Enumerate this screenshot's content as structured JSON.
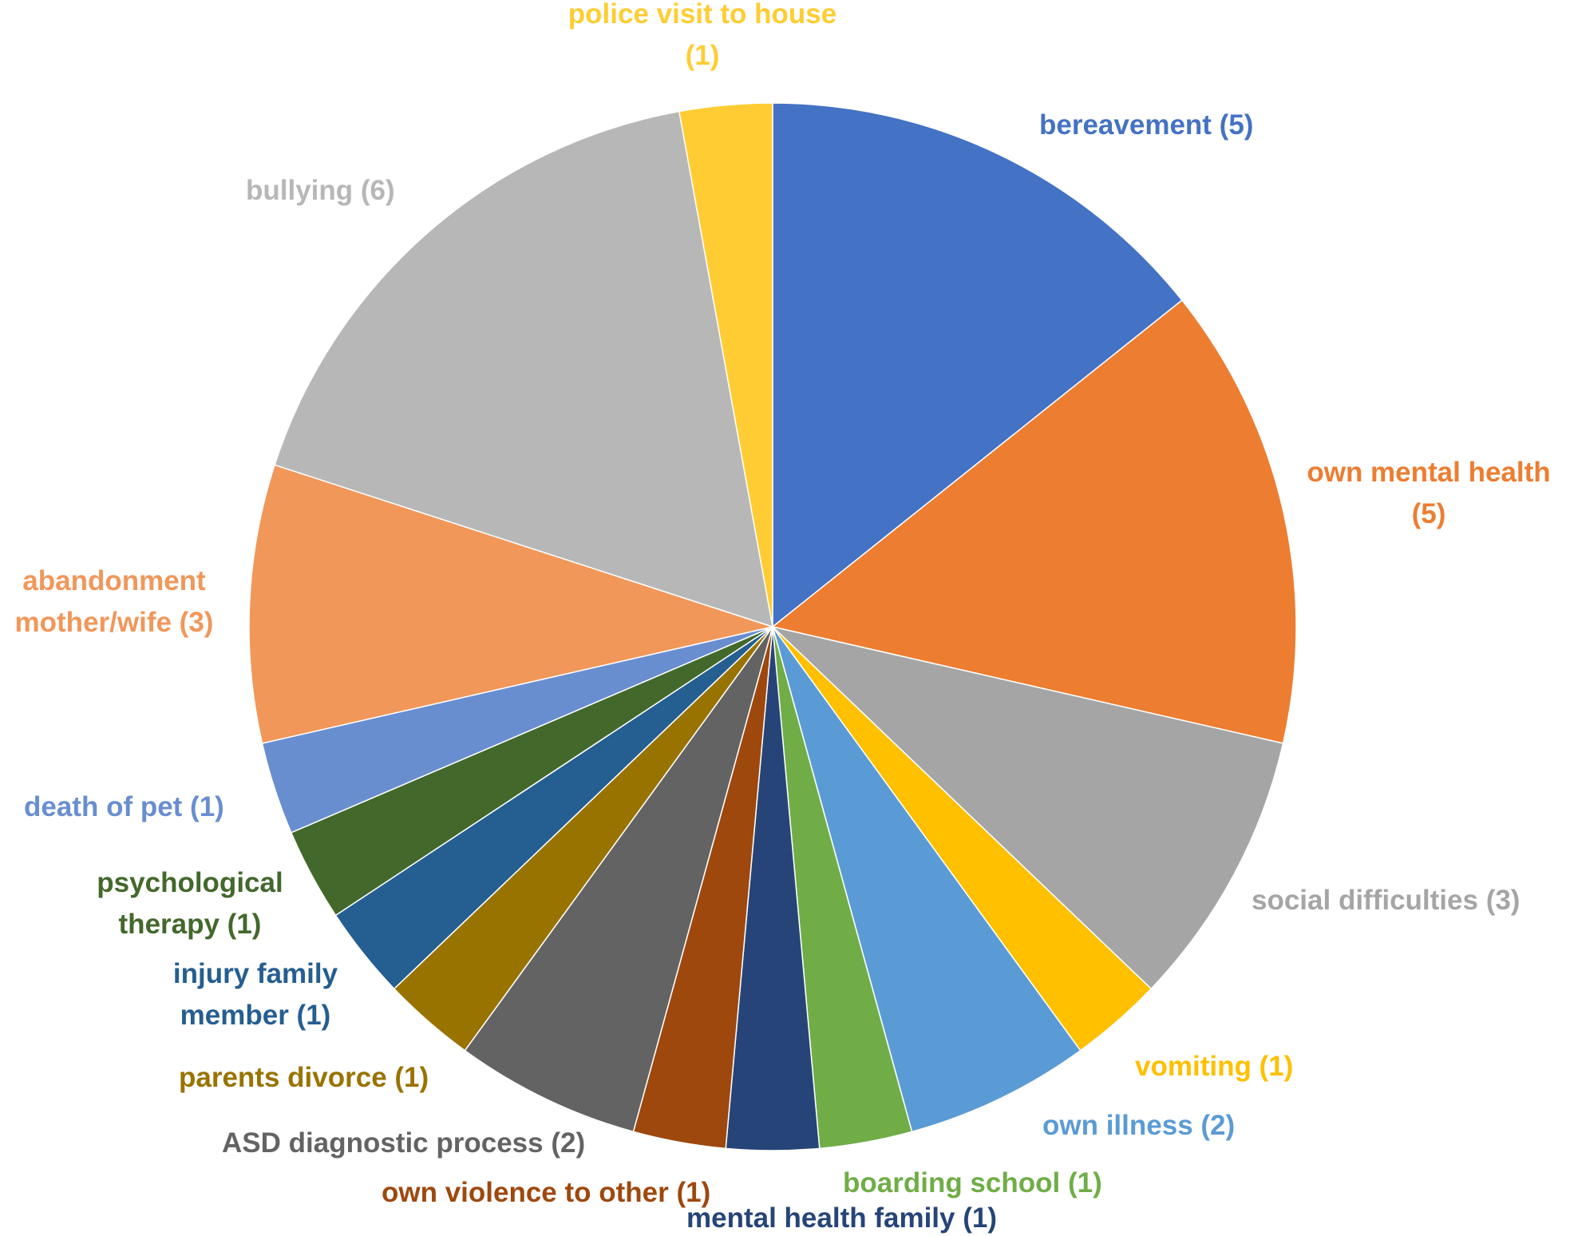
{
  "chart_data": {
    "type": "pie",
    "title": "",
    "start_angle_deg": 0,
    "direction": "clockwise",
    "slices": [
      {
        "key": "bereavement",
        "line1": "bereavement (5)",
        "line2": "",
        "category": "bereavement",
        "value": 5,
        "color": "#4472C4"
      },
      {
        "key": "own-mental-health",
        "line1": "own mental health",
        "line2": "(5)",
        "category": "own mental health",
        "value": 5,
        "color": "#ED7D31"
      },
      {
        "key": "social-difficulties",
        "line1": "social difficulties (3)",
        "line2": "",
        "category": "social difficulties",
        "value": 3,
        "color": "#A5A5A5"
      },
      {
        "key": "vomiting",
        "line1": "vomiting (1)",
        "line2": "",
        "category": "vomiting",
        "value": 1,
        "color": "#FFC000"
      },
      {
        "key": "own-illness",
        "line1": "own illness (2)",
        "line2": "",
        "category": "own illness",
        "value": 2,
        "color": "#5B9BD5"
      },
      {
        "key": "boarding-school",
        "line1": "boarding school (1)",
        "line2": "",
        "category": "boarding school",
        "value": 1,
        "color": "#70AD47"
      },
      {
        "key": "mental-health-family",
        "line1": "mental health family (1)",
        "line2": "",
        "category": "mental health family",
        "value": 1,
        "color": "#264478"
      },
      {
        "key": "own-violence-to-other",
        "line1": "own violence to other (1)",
        "line2": "",
        "category": "own violence to other",
        "value": 1,
        "color": "#9E480E"
      },
      {
        "key": "asd-diagnostic-process",
        "line1": "ASD diagnostic process (2)",
        "line2": "",
        "category": "ASD diagnostic process",
        "value": 2,
        "color": "#636363"
      },
      {
        "key": "parents-divorce",
        "line1": "parents divorce (1)",
        "line2": "",
        "category": "parents divorce",
        "value": 1,
        "color": "#997300"
      },
      {
        "key": "injury-family-member",
        "line1": "injury family",
        "line2": "member (1)",
        "category": "injury family member",
        "value": 1,
        "color": "#255E91"
      },
      {
        "key": "psychological-therapy",
        "line1": "psychological",
        "line2": "therapy (1)",
        "category": "psychological therapy",
        "value": 1,
        "color": "#43682B"
      },
      {
        "key": "death-of-pet",
        "line1": "death of pet (1)",
        "line2": "",
        "category": "death of pet",
        "value": 1,
        "color": "#698ED0"
      },
      {
        "key": "abandonment-mother-wife",
        "line1": "abandonment",
        "line2": "mother/wife (3)",
        "category": "abandonment mother/wife",
        "value": 3,
        "color": "#F1975A"
      },
      {
        "key": "bullying",
        "line1": "bullying (6)",
        "line2": "",
        "category": "bullying",
        "value": 6,
        "color": "#B7B7B7"
      },
      {
        "key": "police-visit-to-house",
        "line1": "police visit to house",
        "line2": "(1)",
        "category": "police visit to house",
        "value": 1,
        "color": "#FFCD33"
      }
    ]
  }
}
